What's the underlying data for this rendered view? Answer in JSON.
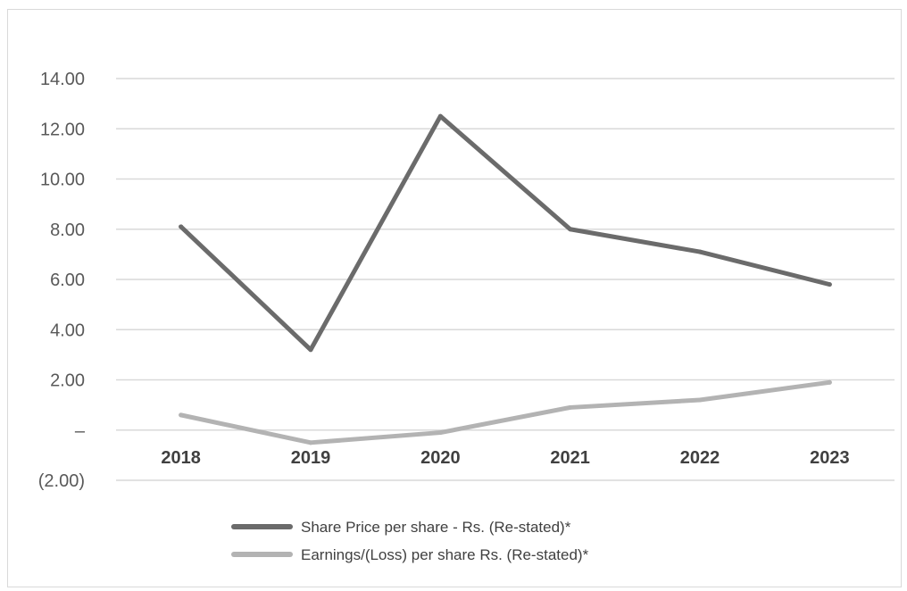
{
  "chart_data": {
    "type": "line",
    "title": "",
    "xlabel": "",
    "ylabel": "",
    "categories": [
      "2018",
      "2019",
      "2020",
      "2021",
      "2022",
      "2023"
    ],
    "y_ticks": [
      {
        "value": -2,
        "label": "(2.00)"
      },
      {
        "value": 0,
        "label": "–"
      },
      {
        "value": 2,
        "label": "2.00"
      },
      {
        "value": 4,
        "label": "4.00"
      },
      {
        "value": 6,
        "label": "6.00"
      },
      {
        "value": 8,
        "label": "8.00"
      },
      {
        "value": 10,
        "label": "10.00"
      },
      {
        "value": 12,
        "label": "12.00"
      },
      {
        "value": 14,
        "label": "14.00"
      }
    ],
    "ylim": [
      -2,
      14
    ],
    "grid": true,
    "legend_position": "bottom",
    "series": [
      {
        "name": "Share Price per share - Rs. (Re-stated)*",
        "color": "#6b6b6b",
        "values": [
          8.1,
          3.2,
          12.5,
          8.0,
          7.1,
          5.8
        ]
      },
      {
        "name": "Earnings/(Loss) per share Rs. (Re-stated)*",
        "color": "#b3b3b3",
        "values": [
          0.6,
          -0.5,
          -0.1,
          0.9,
          1.2,
          1.9
        ]
      }
    ]
  }
}
